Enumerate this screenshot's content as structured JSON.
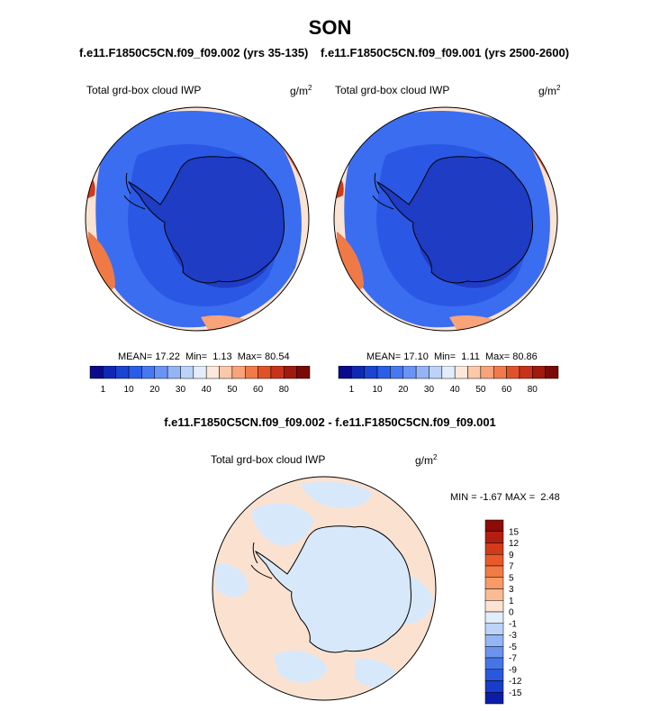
{
  "season": "SON",
  "case_titles": {
    "left": "f.e11.F1850C5CN.f09_f09.002 (yrs 35-135)",
    "right": "f.e11.F1850C5CN.f09_f09.001 (yrs 2500-2600)"
  },
  "diff_title": "f.e11.F1850C5CN.f09_f09.002 - f.e11.F1850C5CN.f09_f09.001",
  "colors": {
    "deep_blue": "#1a4fe6",
    "mid_blue": "#3b6df0",
    "antarctic_blue": "#2846d6",
    "interior_blue": "#1f3cc4",
    "pale_peach": "#fbe3d3",
    "orange": "#f07a45",
    "red": "#d23a1a",
    "diff_peach": "#fbe2d0",
    "diff_pale_blue": "#d8e8fb"
  },
  "chart_data": [
    {
      "type": "heatmap",
      "projection": "south polar stereographic",
      "label": "Total grd-box cloud IWP",
      "units": "g/m",
      "units_sup": "2",
      "stats": {
        "mean_label": "MEAN=",
        "mean": "17.22",
        "min_label": "Min=",
        "min": "1.13",
        "max_label": "Max=",
        "max": "80.54"
      },
      "colorbar": {
        "ticks": [
          "1",
          "10",
          "20",
          "30",
          "40",
          "50",
          "60",
          "80"
        ],
        "colors": [
          "#0a0a8c",
          "#0f28b4",
          "#1a44d2",
          "#2a5ee8",
          "#4678f2",
          "#6a94f4",
          "#94b4f6",
          "#bcd2f8",
          "#e2ecfa",
          "#fbe8da",
          "#fcc8aa",
          "#f8a37a",
          "#f07a4a",
          "#e25228",
          "#c8321a",
          "#a01a0e",
          "#7a0a06"
        ]
      }
    },
    {
      "type": "heatmap",
      "projection": "south polar stereographic",
      "label": "Total grd-box cloud IWP",
      "units": "g/m",
      "units_sup": "2",
      "stats": {
        "mean_label": "MEAN=",
        "mean": "17.10",
        "min_label": "Min=",
        "min": "1.11",
        "max_label": "Max=",
        "max": "80.86"
      },
      "colorbar": {
        "ticks": [
          "1",
          "10",
          "20",
          "30",
          "40",
          "50",
          "60",
          "80"
        ],
        "colors": [
          "#0a0a8c",
          "#0f28b4",
          "#1a44d2",
          "#2a5ee8",
          "#4678f2",
          "#6a94f4",
          "#94b4f6",
          "#bcd2f8",
          "#e2ecfa",
          "#fbe8da",
          "#fcc8aa",
          "#f8a37a",
          "#f07a4a",
          "#e25228",
          "#c8321a",
          "#a01a0e",
          "#7a0a06"
        ]
      }
    },
    {
      "type": "heatmap",
      "projection": "south polar stereographic",
      "label": "Total grd-box cloud IWP",
      "units": "g/m",
      "units_sup": "2",
      "stats": {
        "min_label": "MIN =",
        "min": "-1.67",
        "max_label": "MAX =",
        "max": "2.48"
      },
      "colorbar": {
        "orientation": "vertical",
        "ticks": [
          "15",
          "12",
          "9",
          "7",
          "5",
          "3",
          "1",
          "0",
          "-1",
          "-3",
          "-5",
          "-7",
          "-9",
          "-12",
          "-15"
        ],
        "colors": [
          "#8c0c08",
          "#b41e10",
          "#d23a1a",
          "#e85a2a",
          "#f27a44",
          "#f79a66",
          "#fbbb92",
          "#fde3d0",
          "#e2edfb",
          "#bcd4f8",
          "#94b6f4",
          "#6a94ee",
          "#4676e6",
          "#2a58dc",
          "#1a3ccc",
          "#0c1ea8"
        ]
      }
    }
  ]
}
